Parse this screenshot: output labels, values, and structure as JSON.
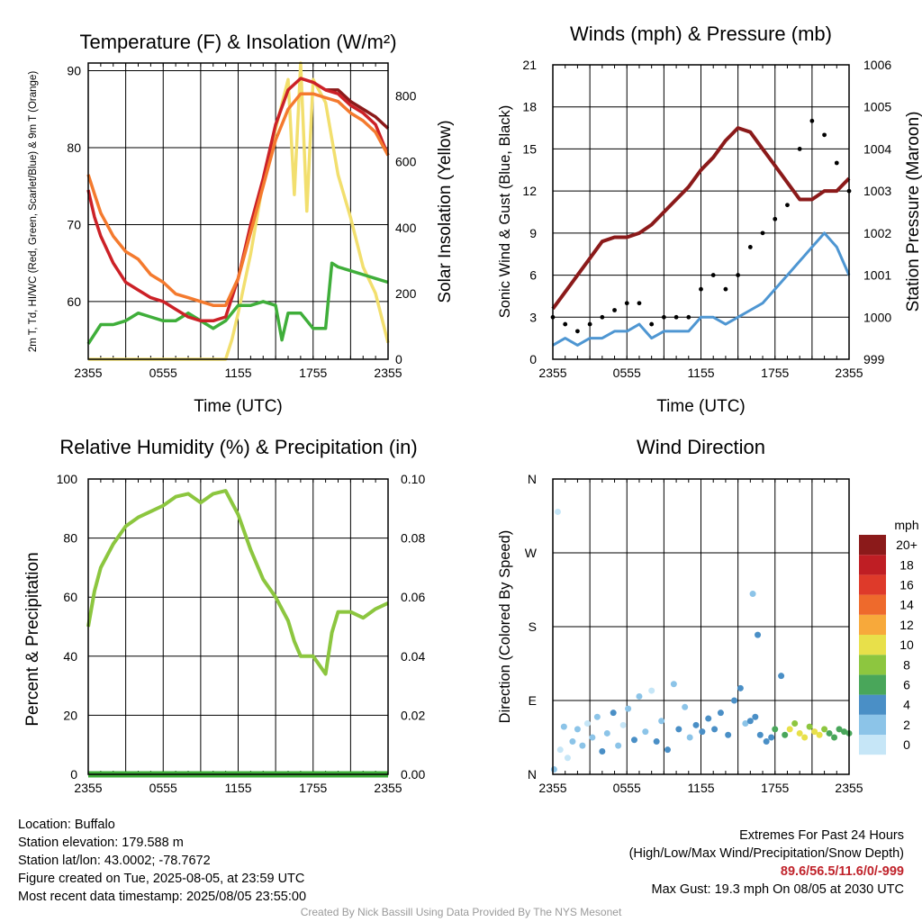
{
  "panels": {
    "temp": {
      "title": "Temperature (F) & Insolation (W/m²)",
      "ylabel_left": "2m T, Td, HI/WC (Red, Green, Scarlet/Blue) & 9m T (Orange)",
      "ylabel_right": "Solar Insolation (Yellow)",
      "xlabel": "Time (UTC)"
    },
    "wind": {
      "title": "Winds (mph) & Pressure (mb)",
      "ylabel_left": "Sonic Wind & Gust (Blue, Black)",
      "ylabel_right": "Station Pressure (Maroon)",
      "xlabel": "Time (UTC)"
    },
    "rh": {
      "title": "Relative Humidity (%) & Precipitation (in)",
      "ylabel_left": "Percent & Precipitation"
    },
    "dir": {
      "title": "Wind Direction",
      "ylabel_left": "Direction (Colored By Speed)",
      "colorbar_unit": "mph"
    }
  },
  "info": {
    "location": "Location: Buffalo",
    "elevation": "Station elevation: 179.588 m",
    "latlon": "Station lat/lon: 43.0002; -78.7672",
    "created": "Figure created on Tue, 2025-08-05, at 23:59 UTC",
    "latest": "Most recent data timestamp: 2025/08/05 23:55:00",
    "extremes_title": "Extremes For Past 24 Hours",
    "extremes_legend": "(High/Low/Max Wind/Precipitation/Snow Depth)",
    "extremes_values": "89.6/56.5/11.6/0/-999",
    "max_gust": "Max Gust: 19.3 mph On 08/05 at 2030 UTC",
    "credit": "Created By Nick Bassill Using Data Provided By The NYS Mesonet"
  },
  "chart_data": [
    {
      "id": "temp",
      "type": "line",
      "title": "Temperature (F) & Insolation (W/m²)",
      "xlabel": "Time (UTC)",
      "ylabel": "2m T, Td, HI/WC (Red, Green, Scarlet/Blue) & 9m T (Orange)",
      "y2label": "Solar Insolation (Yellow)",
      "x_ticks": [
        "2355",
        "0555",
        "1155",
        "1755",
        "2355"
      ],
      "x_hours_range": [
        0,
        24
      ],
      "ylim": [
        52.5,
        91
      ],
      "y_ticks": [
        60,
        70,
        80,
        90
      ],
      "y2lim": [
        0,
        900
      ],
      "y2_ticks": [
        0,
        200,
        400,
        600,
        800
      ],
      "grid": true,
      "series": [
        {
          "color": "#f47a2e",
          "axis": "left",
          "x": [
            0,
            0.5,
            1,
            2,
            3,
            4,
            5,
            6,
            7,
            8,
            9,
            10,
            11,
            12,
            13,
            14,
            15,
            16,
            17,
            18,
            19,
            20,
            21,
            22,
            23,
            24
          ],
          "y": [
            76.5,
            74,
            71.5,
            68.5,
            66.5,
            65.5,
            63.5,
            62.5,
            61,
            60.5,
            60,
            59.5,
            59.5,
            63,
            69,
            75,
            81,
            85,
            87,
            87,
            86.5,
            86,
            84.5,
            83.5,
            82,
            79
          ]
        },
        {
          "color": "#cc2127",
          "axis": "left",
          "x": [
            0,
            0.5,
            1,
            2,
            3,
            4,
            5,
            6,
            7,
            8,
            9,
            10,
            11,
            12,
            13,
            14,
            15,
            16,
            17,
            18,
            19,
            20,
            21,
            22,
            23,
            24
          ],
          "y": [
            74.5,
            71,
            68.5,
            65,
            62.5,
            61.5,
            60.5,
            60,
            59,
            58,
            57.5,
            57.5,
            58,
            63,
            70,
            76,
            83,
            87.5,
            89,
            88.5,
            87.5,
            87,
            85.5,
            84.5,
            83,
            79
          ]
        },
        {
          "color": "#8b1a1a",
          "axis": "left",
          "x": [
            19,
            20,
            21,
            22,
            23,
            24
          ],
          "y": [
            87.5,
            87.5,
            86,
            85,
            84,
            82.5
          ]
        },
        {
          "color": "#3fae3a",
          "axis": "left",
          "x": [
            0,
            1,
            2,
            3,
            4,
            5,
            6,
            7,
            8,
            9,
            10,
            11,
            12,
            13,
            14,
            15,
            15.5,
            16,
            17,
            18,
            19,
            19.5,
            20,
            21,
            22,
            23,
            24
          ],
          "y": [
            54.5,
            57,
            57,
            57.5,
            58.5,
            58,
            57.5,
            57.5,
            58.5,
            57.5,
            56.5,
            57.5,
            59.5,
            59.5,
            60,
            59.5,
            55,
            58.5,
            58.5,
            56.5,
            56.5,
            65,
            64.5,
            64,
            63.5,
            63,
            62.5
          ]
        },
        {
          "color": "#f2df6e",
          "axis": "right",
          "x": [
            0,
            1,
            2,
            3,
            4,
            5,
            6,
            7,
            8,
            9,
            10,
            11,
            11.5,
            12,
            13,
            14,
            15,
            16,
            16.5,
            17,
            17.5,
            18,
            19,
            20,
            21,
            22,
            23,
            24
          ],
          "y": [
            0,
            0,
            0,
            0,
            0,
            0,
            0,
            0,
            0,
            0,
            0,
            0,
            60,
            140,
            320,
            540,
            700,
            850,
            500,
            900,
            450,
            850,
            780,
            560,
            430,
            280,
            200,
            50
          ]
        }
      ]
    },
    {
      "id": "wind",
      "type": "line",
      "title": "Winds (mph) & Pressure (mb)",
      "xlabel": "Time (UTC)",
      "ylabel": "Sonic Wind & Gust (Blue, Black)",
      "y2label": "Station Pressure (Maroon)",
      "x_ticks": [
        "2355",
        "0555",
        "1155",
        "1755",
        "2355"
      ],
      "x_hours_range": [
        0,
        24
      ],
      "ylim": [
        0,
        21
      ],
      "y_ticks": [
        0,
        3,
        6,
        9,
        12,
        15,
        18,
        21
      ],
      "y2lim": [
        999,
        1006
      ],
      "y2_ticks": [
        999,
        1000,
        1001,
        1002,
        1003,
        1004,
        1005,
        1006
      ],
      "grid": true,
      "series": [
        {
          "color": "#8b1a1a",
          "axis": "right",
          "x": [
            0,
            1,
            2,
            3,
            4,
            5,
            6,
            7,
            8,
            9,
            10,
            11,
            12,
            13,
            14,
            15,
            16,
            17,
            18,
            19,
            20,
            21,
            22,
            23,
            24
          ],
          "y": [
            1000.2,
            1000.6,
            1001.0,
            1001.4,
            1001.8,
            1001.9,
            1001.9,
            1002.0,
            1002.2,
            1002.5,
            1002.8,
            1003.1,
            1003.5,
            1003.8,
            1004.2,
            1004.5,
            1004.4,
            1004.0,
            1003.6,
            1003.2,
            1002.8,
            1002.8,
            1003.0,
            1003.0,
            1003.3
          ]
        },
        {
          "color": "#4e96d2",
          "axis": "left",
          "x": [
            0,
            1,
            2,
            3,
            4,
            5,
            6,
            7,
            8,
            9,
            10,
            11,
            12,
            13,
            14,
            15,
            16,
            17,
            18,
            19,
            20,
            21,
            22,
            23,
            24
          ],
          "y": [
            1,
            1.5,
            1,
            1.5,
            1.5,
            2,
            2,
            2.5,
            1.5,
            2,
            2,
            2,
            3,
            3,
            2.5,
            3,
            3.5,
            4,
            5,
            6,
            7,
            8,
            9,
            8,
            6
          ]
        },
        {
          "color": "#000000",
          "axis": "left",
          "style": "points",
          "x": [
            0,
            1,
            2,
            3,
            4,
            5,
            6,
            7,
            8,
            9,
            10,
            11,
            12,
            13,
            14,
            15,
            16,
            17,
            18,
            19,
            20,
            21,
            22,
            23,
            24
          ],
          "y": [
            3,
            2.5,
            2,
            2.5,
            3,
            3.5,
            4,
            4,
            2.5,
            3,
            3,
            3,
            5,
            6,
            5,
            6,
            8,
            9,
            10,
            11,
            15,
            17,
            16,
            14,
            12
          ]
        }
      ]
    },
    {
      "id": "rh",
      "type": "line",
      "title": "Relative Humidity (%) & Precipitation (in)",
      "ylabel": "Percent & Precipitation",
      "x_ticks": [
        "2355",
        "0555",
        "1155",
        "1755",
        "2355"
      ],
      "x_hours_range": [
        0,
        24
      ],
      "ylim": [
        0,
        100
      ],
      "y_ticks": [
        0,
        20,
        40,
        60,
        80,
        100
      ],
      "y2lim": [
        0,
        0.1
      ],
      "y2_ticks": [
        "0.00",
        "0.02",
        "0.04",
        "0.06",
        "0.08",
        "0.10"
      ],
      "grid": true,
      "series": [
        {
          "color": "#8cc63f",
          "axis": "left",
          "x": [
            0,
            0.5,
            1,
            2,
            3,
            4,
            5,
            6,
            7,
            8,
            9,
            10,
            11,
            12,
            13,
            14,
            15,
            16,
            16.5,
            17,
            18,
            19,
            19.5,
            20,
            21,
            22,
            23,
            24
          ],
          "y": [
            50,
            62,
            70,
            78,
            84,
            87,
            89,
            91,
            94,
            95,
            92,
            95,
            96,
            88,
            76,
            66,
            60,
            52,
            45,
            40,
            40,
            34,
            48,
            55,
            55,
            53,
            56,
            58
          ]
        },
        {
          "color": "#3fae3a",
          "axis": "right",
          "x": [
            0,
            24
          ],
          "y": [
            0,
            0
          ]
        }
      ]
    },
    {
      "id": "dir",
      "type": "scatter",
      "title": "Wind Direction",
      "ylabel": "Direction (Colored By Speed)",
      "x_ticks": [
        "2355",
        "0555",
        "1155",
        "1755",
        "2355"
      ],
      "x_hours_range": [
        0,
        24
      ],
      "ylim": [
        0,
        360
      ],
      "y_ticks": [
        "N",
        "E",
        "S",
        "W",
        "N"
      ],
      "grid": true,
      "colorbar": {
        "unit": "mph",
        "labels": [
          "0",
          "2",
          "4",
          "6",
          "8",
          "10",
          "12",
          "14",
          "16",
          "18",
          "20+"
        ],
        "colors": [
          "#c6e6f7",
          "#8cc4e8",
          "#4a8fc6",
          "#49a65a",
          "#8dc63f",
          "#e8e04a",
          "#f7a93b",
          "#ee6a2c",
          "#de3a2a",
          "#bf1e24",
          "#8b1a1a"
        ]
      },
      "points": [
        [
          0.1,
          6,
          3
        ],
        [
          0.4,
          320,
          1
        ],
        [
          0.6,
          30,
          1
        ],
        [
          0.9,
          58,
          2
        ],
        [
          1.2,
          20,
          1
        ],
        [
          1.6,
          40,
          2
        ],
        [
          2.0,
          55,
          2
        ],
        [
          2.4,
          35,
          3
        ],
        [
          2.8,
          62,
          1
        ],
        [
          3.2,
          45,
          3
        ],
        [
          3.6,
          70,
          3
        ],
        [
          4.0,
          28,
          4
        ],
        [
          4.4,
          50,
          2
        ],
        [
          4.9,
          75,
          4
        ],
        [
          5.3,
          35,
          3
        ],
        [
          5.7,
          60,
          1
        ],
        [
          6.1,
          80,
          3
        ],
        [
          6.6,
          42,
          4
        ],
        [
          7.0,
          95,
          2
        ],
        [
          7.5,
          52,
          3
        ],
        [
          8.0,
          102,
          1
        ],
        [
          8.4,
          40,
          4
        ],
        [
          8.8,
          65,
          3
        ],
        [
          9.3,
          30,
          4
        ],
        [
          9.8,
          110,
          2
        ],
        [
          10.2,
          55,
          4
        ],
        [
          10.7,
          82,
          3
        ],
        [
          11.1,
          45,
          3
        ],
        [
          11.6,
          60,
          4
        ],
        [
          12.1,
          52,
          4
        ],
        [
          12.6,
          68,
          4
        ],
        [
          13.1,
          55,
          4
        ],
        [
          13.6,
          75,
          4
        ],
        [
          14.2,
          48,
          4
        ],
        [
          14.7,
          90,
          4
        ],
        [
          15.2,
          105,
          4
        ],
        [
          15.6,
          62,
          3
        ],
        [
          16.0,
          65,
          4
        ],
        [
          16.4,
          70,
          5
        ],
        [
          16.8,
          48,
          4
        ],
        [
          16.2,
          220,
          2
        ],
        [
          16.6,
          170,
          4
        ],
        [
          17.3,
          40,
          5
        ],
        [
          17.7,
          45,
          5
        ],
        [
          18.0,
          55,
          6
        ],
        [
          18.5,
          120,
          5
        ],
        [
          18.8,
          48,
          7
        ],
        [
          19.2,
          55,
          10
        ],
        [
          19.6,
          62,
          8
        ],
        [
          20.0,
          50,
          10
        ],
        [
          20.4,
          45,
          10
        ],
        [
          20.8,
          58,
          8
        ],
        [
          21.2,
          52,
          10
        ],
        [
          21.6,
          48,
          10
        ],
        [
          22.0,
          55,
          8
        ],
        [
          22.4,
          50,
          7
        ],
        [
          22.8,
          45,
          7
        ],
        [
          23.2,
          55,
          6
        ],
        [
          23.6,
          52,
          6
        ],
        [
          24.0,
          50,
          6
        ]
      ]
    }
  ]
}
